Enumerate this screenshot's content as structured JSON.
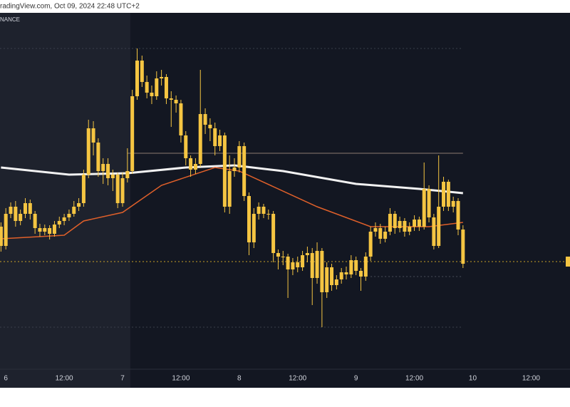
{
  "header": {
    "source": "radingView.com, Oct 09, 2024 22:48 UTC+2",
    "exchange": "NANCE"
  },
  "chart_data": {
    "type": "candlestick",
    "color": "#f5c542",
    "xlim": [
      -1.2,
      116
    ],
    "ylim": [
      0,
      500
    ],
    "xticks": [
      {
        "value": 0,
        "label": "6"
      },
      {
        "value": 12,
        "label": "12:00"
      },
      {
        "value": 24,
        "label": "7"
      },
      {
        "value": 36,
        "label": "12:00"
      },
      {
        "value": 48,
        "label": "8"
      },
      {
        "value": 60,
        "label": "12:00"
      },
      {
        "value": 72,
        "label": "9"
      },
      {
        "value": 84,
        "label": "12:00"
      },
      {
        "value": 96,
        "label": "10"
      },
      {
        "value": 108,
        "label": "12:00"
      }
    ],
    "highlight_xlim": [
      -1.2,
      25.6
    ],
    "x": [
      -1,
      0,
      1,
      2,
      3,
      4,
      5,
      6,
      7,
      8,
      9,
      10,
      11,
      12,
      13,
      14,
      15,
      16,
      17,
      18,
      19,
      20,
      21,
      22,
      23,
      24,
      25,
      26,
      27,
      28,
      29,
      30,
      31,
      32,
      33,
      34,
      35,
      36,
      37,
      38,
      39,
      40,
      41,
      42,
      43,
      44,
      45,
      46,
      47,
      48,
      49,
      50,
      51,
      52,
      53,
      54,
      55,
      56,
      57,
      58,
      59,
      60,
      61,
      62,
      63,
      64,
      65,
      66,
      67,
      68,
      69,
      70,
      71,
      72,
      73,
      74,
      75,
      76,
      77,
      78,
      79,
      80,
      81,
      82,
      83,
      84,
      85,
      86,
      87,
      88,
      89,
      90,
      91,
      92,
      93,
      94
    ],
    "open": [
      200,
      173,
      218,
      228,
      208,
      218,
      233,
      218,
      198,
      193,
      198,
      190,
      203,
      208,
      213,
      218,
      228,
      233,
      273,
      338,
      318,
      278,
      288,
      268,
      273,
      233,
      268,
      278,
      383,
      433,
      403,
      388,
      383,
      408,
      410,
      380,
      378,
      373,
      328,
      296,
      280,
      288,
      358,
      343,
      338,
      313,
      328,
      228,
      278,
      283,
      313,
      243,
      178,
      218,
      228,
      218,
      218,
      163,
      158,
      158,
      140,
      150,
      143,
      160,
      163,
      128,
      166,
      108,
      143,
      118,
      126,
      136,
      133,
      153,
      138,
      130,
      158,
      193,
      198,
      183,
      193,
      218,
      198,
      208,
      193,
      200,
      210,
      200,
      253,
      213,
      173,
      228,
      263,
      228,
      236,
      196
    ],
    "high": [
      206,
      226,
      234,
      236,
      224,
      240,
      238,
      222,
      204,
      203,
      202,
      208,
      214,
      218,
      224,
      236,
      240,
      280,
      350,
      348,
      324,
      296,
      296,
      280,
      276,
      276,
      310,
      392,
      450,
      440,
      412,
      398,
      418,
      420,
      414,
      390,
      384,
      378,
      334,
      300,
      296,
      420,
      366,
      352,
      346,
      336,
      332,
      300,
      296,
      320,
      318,
      248,
      226,
      234,
      232,
      224,
      222,
      168,
      166,
      162,
      156,
      158,
      166,
      172,
      170,
      178,
      170,
      150,
      148,
      132,
      142,
      144,
      160,
      158,
      142,
      164,
      200,
      206,
      204,
      200,
      226,
      222,
      214,
      212,
      206,
      216,
      214,
      290,
      258,
      218,
      300,
      270,
      266,
      242,
      240,
      202
    ],
    "low": [
      165,
      168,
      212,
      200,
      202,
      212,
      210,
      190,
      186,
      188,
      182,
      186,
      198,
      202,
      208,
      214,
      222,
      228,
      268,
      300,
      270,
      260,
      258,
      250,
      226,
      228,
      262,
      274,
      378,
      396,
      380,
      372,
      378,
      398,
      372,
      340,
      360,
      318,
      286,
      270,
      274,
      284,
      330,
      320,
      300,
      306,
      220,
      218,
      270,
      276,
      236,
      160,
      170,
      210,
      212,
      210,
      150,
      140,
      146,
      100,
      132,
      136,
      138,
      150,
      90,
      120,
      59,
      100,
      110,
      112,
      120,
      126,
      128,
      132,
      110,
      124,
      152,
      186,
      176,
      178,
      188,
      190,
      192,
      186,
      188,
      194,
      194,
      196,
      206,
      168,
      170,
      222,
      222,
      220,
      188,
      142
    ],
    "close": [
      173,
      218,
      228,
      208,
      218,
      233,
      218,
      198,
      193,
      198,
      190,
      203,
      208,
      213,
      218,
      228,
      233,
      273,
      338,
      318,
      278,
      288,
      268,
      273,
      233,
      268,
      278,
      383,
      433,
      403,
      388,
      383,
      408,
      410,
      380,
      378,
      373,
      328,
      296,
      280,
      288,
      358,
      343,
      338,
      313,
      328,
      228,
      278,
      283,
      313,
      243,
      178,
      218,
      228,
      218,
      218,
      163,
      158,
      158,
      140,
      150,
      143,
      160,
      163,
      128,
      166,
      108,
      143,
      118,
      126,
      136,
      133,
      153,
      138,
      130,
      158,
      193,
      198,
      183,
      193,
      218,
      198,
      208,
      193,
      200,
      210,
      200,
      253,
      213,
      173,
      228,
      263,
      228,
      236,
      196,
      148
    ],
    "series": [
      {
        "color": "#f2f2f2",
        "x": [
          -1,
          13,
          25,
          37,
          47,
          57,
          72,
          85,
          94
        ],
        "values": [
          283,
          273,
          275,
          283,
          286,
          278,
          260,
          253,
          247
        ]
      },
      {
        "color": "#e0602a",
        "x": [
          -1,
          12,
          16,
          24,
          32,
          43,
          48,
          64,
          75,
          87,
          94
        ],
        "values": [
          183,
          188,
          208,
          220,
          258,
          283,
          278,
          228,
          200,
          200,
          206
        ]
      }
    ],
    "levels": [
      {
        "value": 303,
        "xlim": [
          25,
          94
        ],
        "color": "#8c7b70",
        "dash": "none"
      },
      {
        "value": 151,
        "xlim": [
          -1.2,
          116
        ],
        "color": "#c9a227",
        "dash": "2 3"
      },
      {
        "value": 450,
        "xlim": [
          -1.2,
          94
        ],
        "color": "#3a3f4b",
        "dash": "2 3"
      },
      {
        "value": 59,
        "xlim": [
          -1.2,
          94
        ],
        "color": "#3a3f4b",
        "dash": "2 3"
      },
      {
        "value": 130,
        "xlim": [
          75,
          94
        ],
        "color": "#4a4f5b",
        "dash": "2 3"
      }
    ]
  }
}
